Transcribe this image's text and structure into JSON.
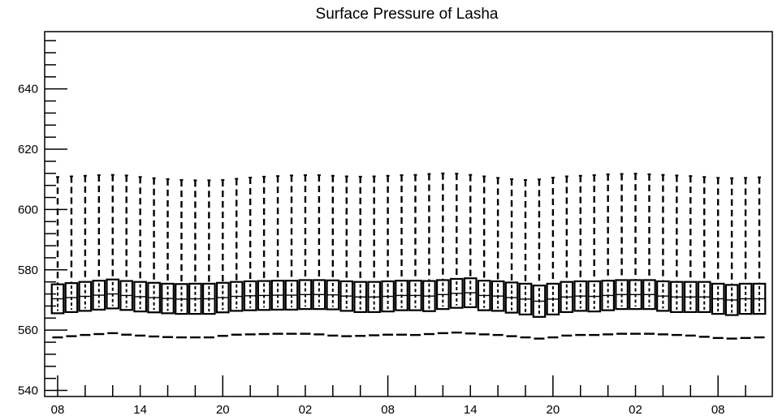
{
  "chart_data": {
    "type": "boxplot",
    "title": "Surface Pressure of Lasha",
    "xlabel": "",
    "ylabel": "",
    "ylim": [
      538,
      659
    ],
    "y_ticks": [
      540,
      560,
      580,
      600,
      620,
      640
    ],
    "x_tick_labels": [
      "08",
      "14",
      "20",
      "02",
      "08",
      "14",
      "20",
      "02",
      "08"
    ],
    "grid": false,
    "legend": "none",
    "colors": {
      "stroke": "#000000",
      "background": "#ffffff"
    },
    "whisker_high": [
      610.8,
      611.0,
      611.2,
      611.4,
      611.5,
      611.3,
      610.8,
      610.4,
      610.1,
      609.8,
      609.7,
      609.7,
      609.8,
      610.2,
      610.6,
      610.9,
      611.1,
      611.3,
      611.4,
      611.4,
      611.2,
      611.0,
      610.9,
      611.0,
      611.2,
      611.4,
      611.5,
      611.8,
      612.0,
      611.9,
      611.5,
      611.0,
      610.5,
      610.1,
      609.8,
      610.0,
      610.6,
      611.0,
      611.2,
      611.4,
      611.7,
      611.8,
      611.9,
      611.7,
      611.5,
      611.3,
      611.1,
      610.8,
      610.5,
      610.4,
      610.5,
      610.7
    ],
    "q3": [
      575.2,
      575.6,
      576.0,
      576.4,
      576.8,
      576.3,
      576.0,
      575.7,
      575.4,
      575.3,
      575.4,
      575.4,
      575.7,
      576.0,
      576.2,
      576.3,
      576.4,
      576.4,
      576.6,
      576.6,
      576.5,
      576.2,
      576.0,
      576.0,
      576.2,
      576.4,
      576.4,
      576.3,
      576.6,
      577.0,
      577.2,
      576.4,
      576.2,
      575.8,
      575.4,
      574.8,
      575.4,
      576.0,
      576.2,
      576.2,
      576.4,
      576.6,
      576.6,
      576.6,
      576.2,
      576.0,
      576.0,
      576.0,
      575.4,
      575.0,
      575.4,
      575.4
    ],
    "median": [
      570.4,
      570.8,
      571.2,
      571.6,
      572.0,
      571.5,
      571.1,
      570.8,
      570.5,
      570.3,
      570.4,
      570.4,
      570.8,
      571.2,
      571.4,
      571.5,
      571.6,
      571.6,
      571.8,
      571.8,
      571.7,
      571.3,
      571.0,
      571.0,
      571.2,
      571.5,
      571.5,
      571.3,
      571.8,
      572.2,
      572.4,
      571.5,
      571.3,
      570.8,
      570.3,
      569.6,
      570.3,
      571.0,
      571.3,
      571.2,
      571.5,
      571.8,
      571.8,
      571.8,
      571.3,
      571.0,
      571.0,
      571.0,
      570.4,
      570.0,
      570.4,
      570.4
    ],
    "q1": [
      565.6,
      566.0,
      566.4,
      566.8,
      567.2,
      566.7,
      566.2,
      565.9,
      565.6,
      565.4,
      565.4,
      565.4,
      565.9,
      566.4,
      566.6,
      566.7,
      566.8,
      566.8,
      567.0,
      567.0,
      566.9,
      566.4,
      566.0,
      566.0,
      566.2,
      566.6,
      566.6,
      566.3,
      567.0,
      567.4,
      567.6,
      566.6,
      566.4,
      565.8,
      565.2,
      564.4,
      565.2,
      566.0,
      566.4,
      566.2,
      566.6,
      567.0,
      567.0,
      567.0,
      566.4,
      566.0,
      566.0,
      566.0,
      565.4,
      565.0,
      565.4,
      565.4
    ],
    "whisker_low": [
      557.6,
      558.0,
      558.4,
      558.7,
      559.0,
      558.5,
      558.2,
      557.9,
      557.7,
      557.6,
      557.6,
      557.6,
      558.1,
      558.5,
      558.6,
      558.7,
      558.8,
      558.8,
      558.8,
      558.6,
      558.2,
      558.0,
      558.1,
      558.3,
      558.5,
      558.5,
      558.4,
      558.7,
      559.0,
      559.2,
      558.9,
      558.6,
      558.4,
      558.0,
      557.6,
      557.2,
      557.6,
      558.2,
      558.4,
      558.4,
      558.6,
      558.8,
      558.8,
      558.8,
      558.6,
      558.4,
      558.2,
      557.8,
      557.4,
      557.2,
      557.4,
      557.6
    ]
  }
}
